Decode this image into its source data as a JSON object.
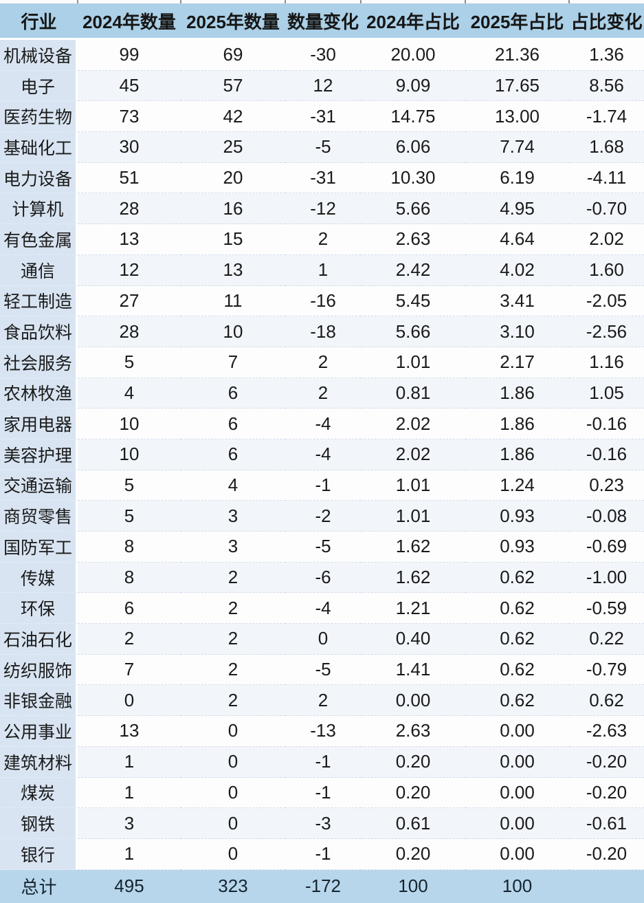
{
  "colors": {
    "header_bg": "#abd0e7",
    "first_column_bg": "#d8e4f1",
    "total_row_bg": "#b7d6eb",
    "alt_row_bg": "#f2f6fb",
    "text": "#1a1a1a"
  },
  "chart_data": {
    "type": "table",
    "columns": [
      "行业",
      "2024年数量",
      "2025年数量",
      "数量变化",
      "2024年占比",
      "2025年占比",
      "占比变化"
    ],
    "rows": [
      {
        "industry": "机械设备",
        "values": [
          "99",
          "69",
          "-30",
          "20.00",
          "21.36",
          "1.36"
        ]
      },
      {
        "industry": "电子",
        "values": [
          "45",
          "57",
          "12",
          "9.09",
          "17.65",
          "8.56"
        ]
      },
      {
        "industry": "医药生物",
        "values": [
          "73",
          "42",
          "-31",
          "14.75",
          "13.00",
          "-1.74"
        ]
      },
      {
        "industry": "基础化工",
        "values": [
          "30",
          "25",
          "-5",
          "6.06",
          "7.74",
          "1.68"
        ]
      },
      {
        "industry": "电力设备",
        "values": [
          "51",
          "20",
          "-31",
          "10.30",
          "6.19",
          "-4.11"
        ]
      },
      {
        "industry": "计算机",
        "values": [
          "28",
          "16",
          "-12",
          "5.66",
          "4.95",
          "-0.70"
        ]
      },
      {
        "industry": "有色金属",
        "values": [
          "13",
          "15",
          "2",
          "2.63",
          "4.64",
          "2.02"
        ]
      },
      {
        "industry": "通信",
        "values": [
          "12",
          "13",
          "1",
          "2.42",
          "4.02",
          "1.60"
        ]
      },
      {
        "industry": "轻工制造",
        "values": [
          "27",
          "11",
          "-16",
          "5.45",
          "3.41",
          "-2.05"
        ]
      },
      {
        "industry": "食品饮料",
        "values": [
          "28",
          "10",
          "-18",
          "5.66",
          "3.10",
          "-2.56"
        ]
      },
      {
        "industry": "社会服务",
        "values": [
          "5",
          "7",
          "2",
          "1.01",
          "2.17",
          "1.16"
        ]
      },
      {
        "industry": "农林牧渔",
        "values": [
          "4",
          "6",
          "2",
          "0.81",
          "1.86",
          "1.05"
        ]
      },
      {
        "industry": "家用电器",
        "values": [
          "10",
          "6",
          "-4",
          "2.02",
          "1.86",
          "-0.16"
        ]
      },
      {
        "industry": "美容护理",
        "values": [
          "10",
          "6",
          "-4",
          "2.02",
          "1.86",
          "-0.16"
        ]
      },
      {
        "industry": "交通运输",
        "values": [
          "5",
          "4",
          "-1",
          "1.01",
          "1.24",
          "0.23"
        ]
      },
      {
        "industry": "商贸零售",
        "values": [
          "5",
          "3",
          "-2",
          "1.01",
          "0.93",
          "-0.08"
        ]
      },
      {
        "industry": "国防军工",
        "values": [
          "8",
          "3",
          "-5",
          "1.62",
          "0.93",
          "-0.69"
        ]
      },
      {
        "industry": "传媒",
        "values": [
          "8",
          "2",
          "-6",
          "1.62",
          "0.62",
          "-1.00"
        ]
      },
      {
        "industry": "环保",
        "values": [
          "6",
          "2",
          "-4",
          "1.21",
          "0.62",
          "-0.59"
        ]
      },
      {
        "industry": "石油石化",
        "values": [
          "2",
          "2",
          "0",
          "0.40",
          "0.62",
          "0.22"
        ]
      },
      {
        "industry": "纺织服饰",
        "values": [
          "7",
          "2",
          "-5",
          "1.41",
          "0.62",
          "-0.79"
        ]
      },
      {
        "industry": "非银金融",
        "values": [
          "0",
          "2",
          "2",
          "0.00",
          "0.62",
          "0.62"
        ]
      },
      {
        "industry": "公用事业",
        "values": [
          "13",
          "0",
          "-13",
          "2.63",
          "0.00",
          "-2.63"
        ]
      },
      {
        "industry": "建筑材料",
        "values": [
          "1",
          "0",
          "-1",
          "0.20",
          "0.00",
          "-0.20"
        ]
      },
      {
        "industry": "煤炭",
        "values": [
          "1",
          "0",
          "-1",
          "0.20",
          "0.00",
          "-0.20"
        ]
      },
      {
        "industry": "钢铁",
        "values": [
          "3",
          "0",
          "-3",
          "0.61",
          "0.00",
          "-0.61"
        ]
      },
      {
        "industry": "银行",
        "values": [
          "1",
          "0",
          "-1",
          "0.20",
          "0.00",
          "-0.20"
        ]
      }
    ],
    "total": {
      "industry": "总计",
      "values": [
        "495",
        "323",
        "-172",
        "100",
        "100",
        ""
      ]
    }
  }
}
